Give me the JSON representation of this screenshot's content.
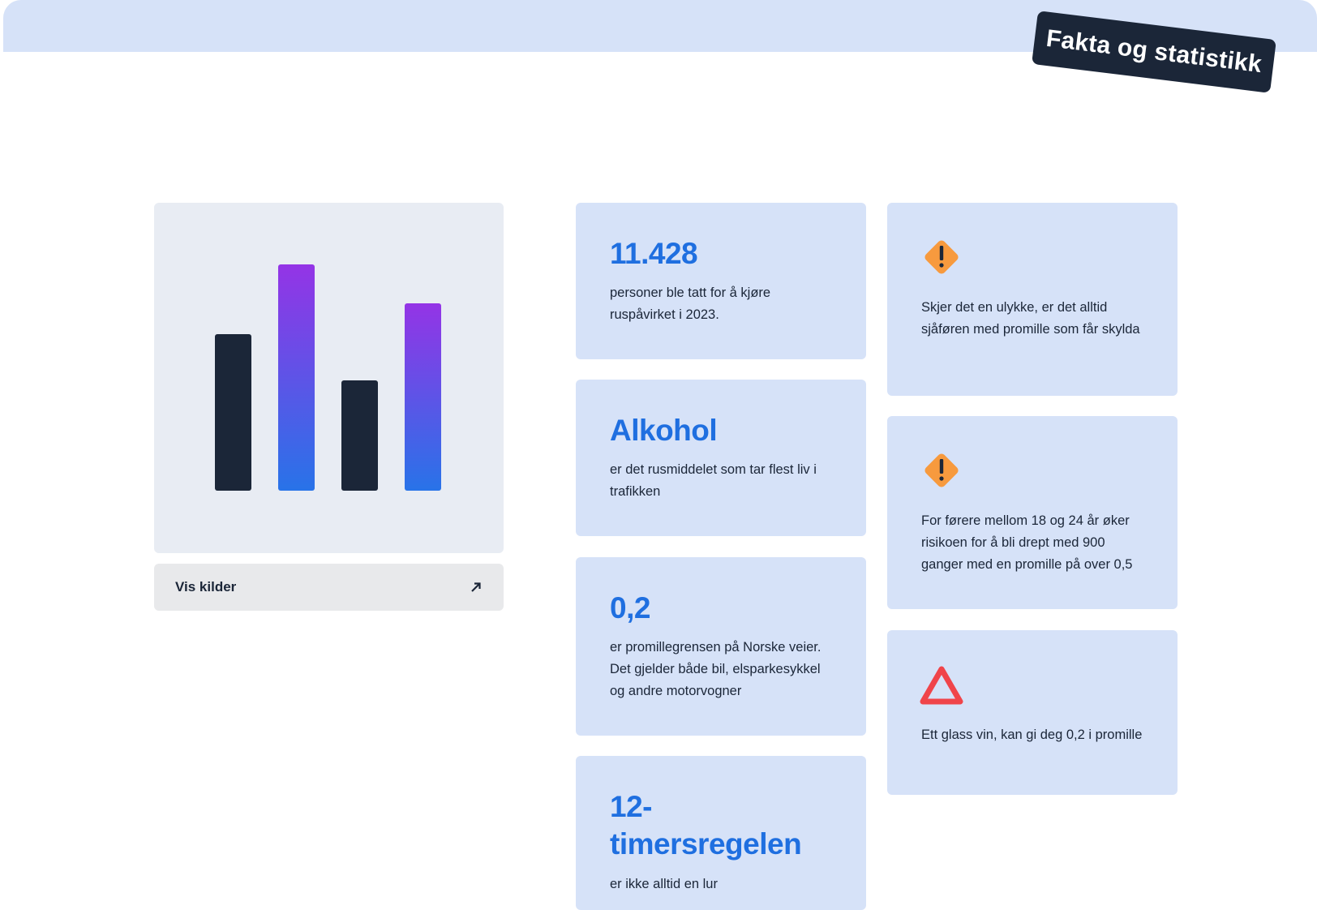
{
  "header": {
    "tag": "Fakta og statistikk"
  },
  "sources_button": {
    "label": "Vis kilder"
  },
  "facts": [
    {
      "headline": "11.428",
      "text": "personer ble tatt for å kjøre ruspåvirket i 2023."
    },
    {
      "headline": "Alkohol",
      "text": "er det rusmiddelet som tar flest liv i trafikken"
    },
    {
      "headline": "0,2",
      "text": "er promillegrensen på Norske veier. Det gjelder både bil, elsparkesykkel og andre motorvogner"
    },
    {
      "headline": "12-timersregelen",
      "text": "er ikke alltid en lur"
    }
  ],
  "warnings": [
    {
      "text": "Skjer det en ulykke, er det alltid sjåføren med promille som får skylda"
    },
    {
      "text": "For førere mellom 18 og 24 år øker risikoen for å bli drept med 900 ganger med en promille på over 0,5"
    },
    {
      "text": "Ett glass vin, kan gi deg 0,2 i promille"
    }
  ]
}
